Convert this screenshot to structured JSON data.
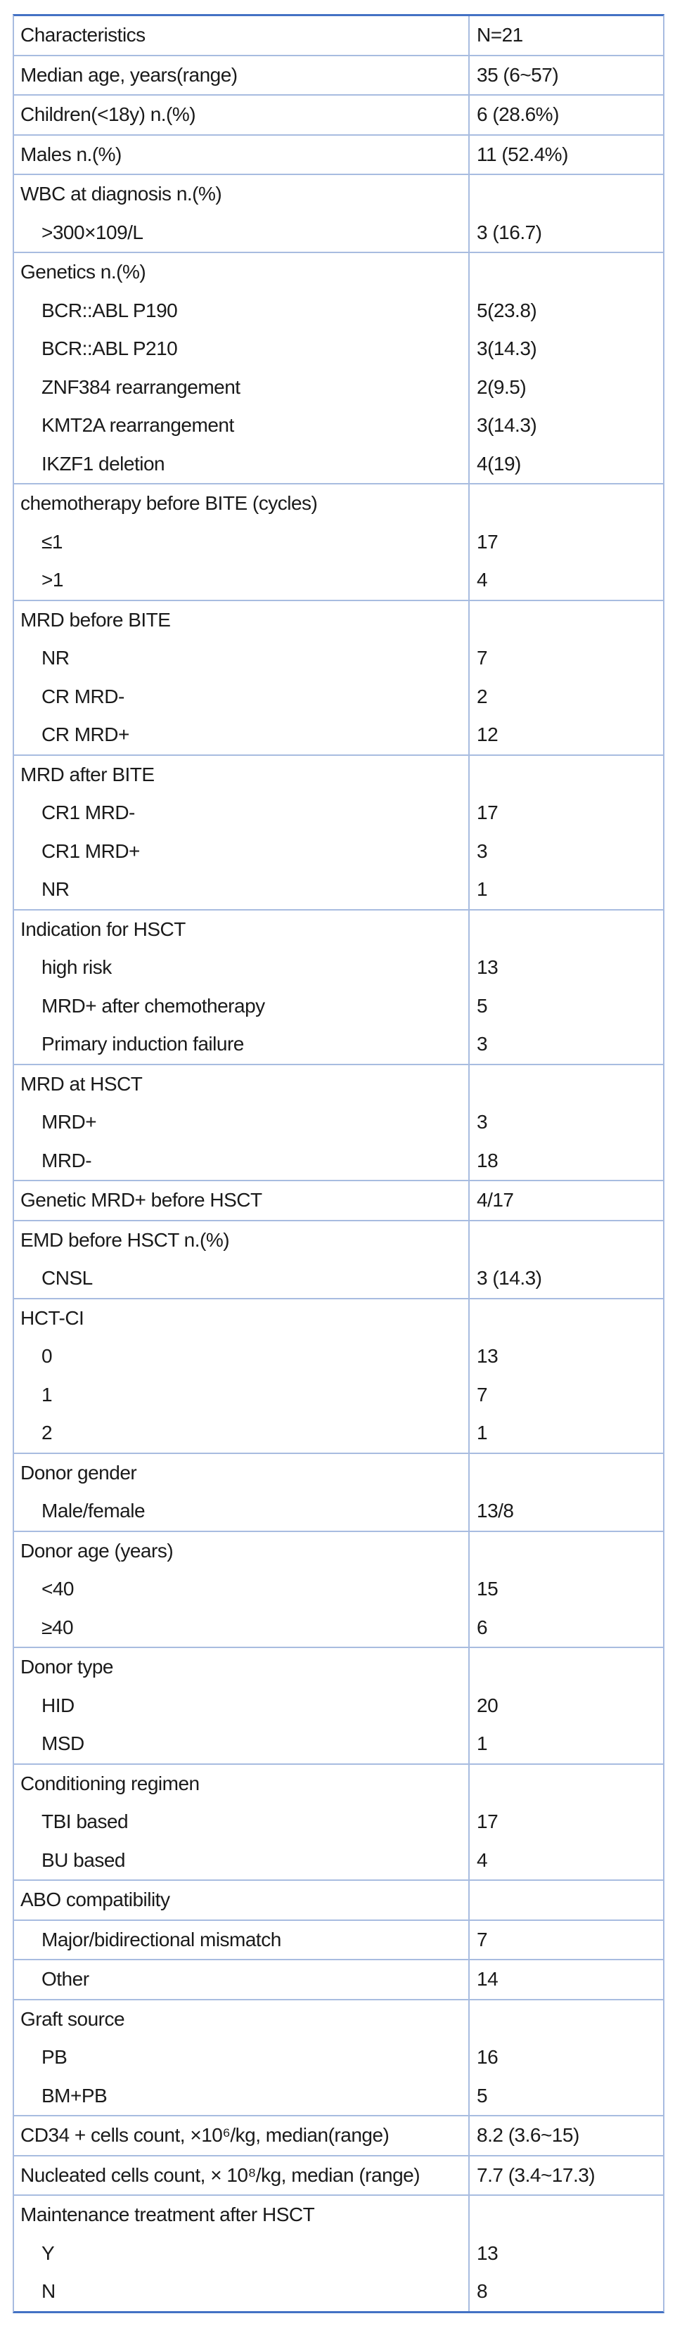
{
  "colors": {
    "outer_border": "#4472c4",
    "grid_border": "#a8bce0",
    "text_color": "#1a1a1a",
    "bg_color": "#ffffff"
  },
  "table": {
    "header": {
      "characteristics": "Characteristics",
      "n": "N=21"
    },
    "sections": [
      {
        "rows": [
          {
            "label": "Median age, years(range)",
            "value": "35 (6~57)",
            "indent": false
          }
        ]
      },
      {
        "rows": [
          {
            "label": "Children(<18y) n.(%)",
            "value": "6 (28.6%)",
            "indent": false
          }
        ]
      },
      {
        "rows": [
          {
            "label": "Males n.(%)",
            "value": "11 (52.4%)",
            "indent": false
          }
        ]
      },
      {
        "rows": [
          {
            "label": "WBC at diagnosis n.(%)",
            "value": "",
            "indent": false
          },
          {
            "label": ">300×109/L",
            "value": "3 (16.7)",
            "indent": true
          }
        ]
      },
      {
        "rows": [
          {
            "label": "Genetics n.(%)",
            "value": "",
            "indent": false
          },
          {
            "label": "BCR::ABL P190",
            "value": "5(23.8)",
            "indent": true
          },
          {
            "label": "BCR::ABL P210",
            "value": "3(14.3)",
            "indent": true
          },
          {
            "label": "ZNF384 rearrangement",
            "value": "2(9.5)",
            "indent": true
          },
          {
            "label": "KMT2A rearrangement",
            "value": "3(14.3)",
            "indent": true
          },
          {
            "label": "IKZF1 deletion",
            "value": "4(19)",
            "indent": true
          }
        ]
      },
      {
        "rows": [
          {
            "label": "chemotherapy before BITE (cycles)",
            "value": "",
            "indent": false
          },
          {
            "label": "≤1",
            "value": "17",
            "indent": true
          },
          {
            "label": ">1",
            "value": "4",
            "indent": true
          }
        ]
      },
      {
        "rows": [
          {
            "label": "MRD before BITE",
            "value": "",
            "indent": false
          },
          {
            "label": "NR",
            "value": "7",
            "indent": true
          },
          {
            "label": "CR MRD-",
            "value": "2",
            "indent": true
          },
          {
            "label": "CR MRD+",
            "value": "12",
            "indent": true
          }
        ]
      },
      {
        "rows": [
          {
            "label": "MRD after BITE",
            "value": "",
            "indent": false
          },
          {
            "label": "CR1 MRD-",
            "value": "17",
            "indent": true
          },
          {
            "label": "CR1 MRD+",
            "value": "3",
            "indent": true
          },
          {
            "label": "NR",
            "value": "1",
            "indent": true
          }
        ]
      },
      {
        "rows": [
          {
            "label": "Indication for HSCT",
            "value": "",
            "indent": false
          },
          {
            "label": "high risk",
            "value": "13",
            "indent": true
          },
          {
            "label": "MRD+ after chemotherapy",
            "value": "5",
            "indent": true
          },
          {
            "label": "Primary induction failure",
            "value": "3",
            "indent": true
          }
        ]
      },
      {
        "rows": [
          {
            "label": "MRD at HSCT",
            "value": "",
            "indent": false
          },
          {
            "label": "MRD+",
            "value": "3",
            "indent": true
          },
          {
            "label": "MRD-",
            "value": "18",
            "indent": true
          }
        ]
      },
      {
        "rows": [
          {
            "label": "Genetic MRD+ before HSCT",
            "value": "4/17",
            "indent": false
          }
        ]
      },
      {
        "rows": [
          {
            "label": "EMD before HSCT n.(%)",
            "value": "",
            "indent": false
          },
          {
            "label": "CNSL",
            "value": "3 (14.3)",
            "indent": true
          }
        ]
      },
      {
        "rows": [
          {
            "label": "HCT-CI",
            "value": "",
            "indent": false
          },
          {
            "label": "0",
            "value": "13",
            "indent": true
          },
          {
            "label": "1",
            "value": "7",
            "indent": true
          },
          {
            "label": "2",
            "value": "1",
            "indent": true
          }
        ]
      },
      {
        "rows": [
          {
            "label": "Donor gender",
            "value": "",
            "indent": false
          },
          {
            "label": "Male/female",
            "value": "13/8",
            "indent": true
          }
        ]
      },
      {
        "rows": [
          {
            "label": "Donor age (years)",
            "value": "",
            "indent": false
          },
          {
            "label": "<40",
            "value": "15",
            "indent": true
          },
          {
            "label": "≥40",
            "value": "6",
            "indent": true
          }
        ]
      },
      {
        "rows": [
          {
            "label": "Donor type",
            "value": "",
            "indent": false
          },
          {
            "label": "HID",
            "value": "20",
            "indent": true
          },
          {
            "label": "MSD",
            "value": "1",
            "indent": true
          }
        ]
      },
      {
        "rows": [
          {
            "label": "Conditioning regimen",
            "value": "",
            "indent": false
          },
          {
            "label": "TBI based",
            "value": "17",
            "indent": true
          },
          {
            "label": "BU based",
            "value": "4",
            "indent": true
          }
        ]
      },
      {
        "rows": [
          {
            "label": "ABO compatibility",
            "value": "",
            "indent": false
          }
        ]
      },
      {
        "rows": [
          {
            "label": "Major/bidirectional mismatch",
            "value": "7",
            "indent": true
          }
        ]
      },
      {
        "rows": [
          {
            "label": "Other",
            "value": "14",
            "indent": true
          }
        ]
      },
      {
        "rows": [
          {
            "label": "Graft source",
            "value": "",
            "indent": false
          },
          {
            "label": "PB",
            "value": "16",
            "indent": true
          },
          {
            "label": "BM+PB",
            "value": "5",
            "indent": true
          }
        ]
      },
      {
        "rows": [
          {
            "label": "CD34 + cells count, ×10⁶/kg, median(range)",
            "value": "8.2 (3.6~15)",
            "indent": false
          }
        ]
      },
      {
        "rows": [
          {
            "label": "Nucleated cells count, × 10⁸/kg, median (range)",
            "value": "7.7 (3.4~17.3)",
            "indent": false
          }
        ]
      },
      {
        "rows": [
          {
            "label": "Maintenance treatment after HSCT",
            "value": "",
            "indent": false
          },
          {
            "label": "Y",
            "value": "13",
            "indent": true
          },
          {
            "label": "N",
            "value": "8",
            "indent": true
          }
        ]
      }
    ]
  }
}
